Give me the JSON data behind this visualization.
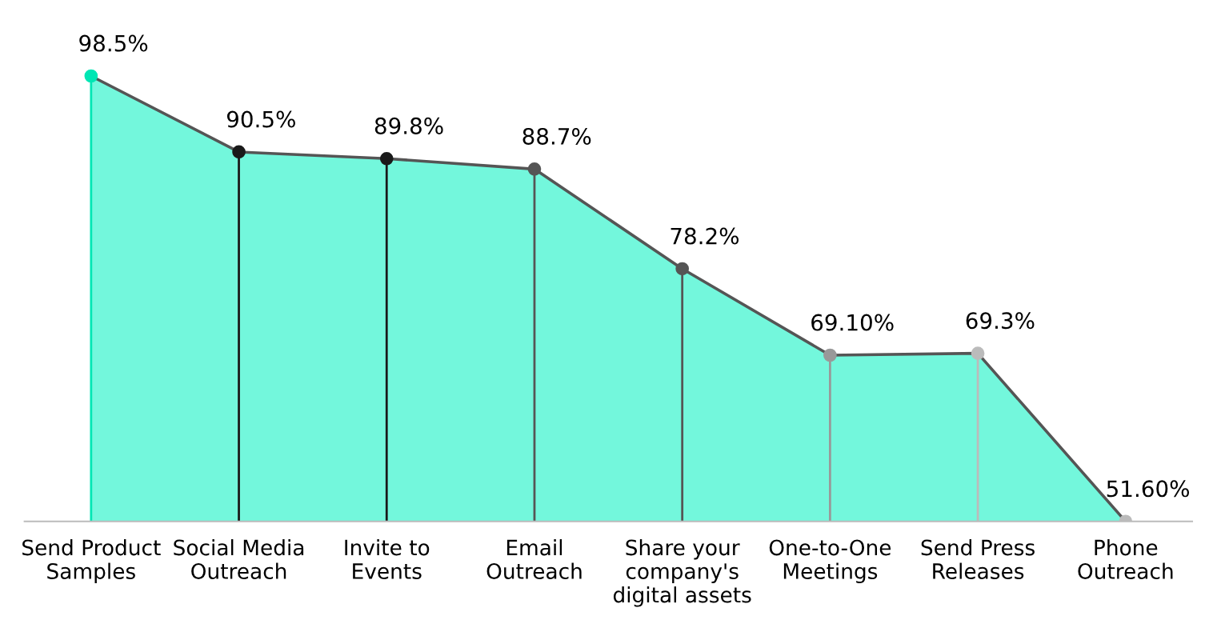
{
  "chart_data": {
    "type": "area",
    "categories": [
      "Send Product\nSamples",
      "Social Media\nOutreach",
      "Invite to\nEvents",
      "Email\nOutreach",
      "Share your\ncompany's\ndigital assets",
      "One-to-One\nMeetings",
      "Send Press\nReleases",
      "Phone\nOutreach"
    ],
    "series": [
      {
        "color": "#00f0c0",
        "values": [
          98.5,
          90.5,
          89.8,
          88.7,
          78.2,
          69.1,
          69.3,
          51.6
        ]
      },
      {
        "type": "lollipop",
        "marker": "circle",
        "color": "#555555",
        "values": [
          98.5,
          90.5,
          89.8,
          88.7,
          78.2,
          69.1,
          69.3,
          51.6
        ],
        "value_labels": [
          "98.5%",
          "90.5%",
          "89.8%",
          "88.7%",
          "78.2%",
          "69.10%",
          "69.3%",
          "51.60%"
        ],
        "colors": [
          "#00e6b4",
          "#1a1a1a",
          "#1a1a1a",
          "#555555",
          "#555555",
          "#999999",
          "#bbbbbb",
          "#bbbbbb"
        ]
      }
    ],
    "tick_labels": "x",
    "line_style": "solid",
    "legend": false
  }
}
